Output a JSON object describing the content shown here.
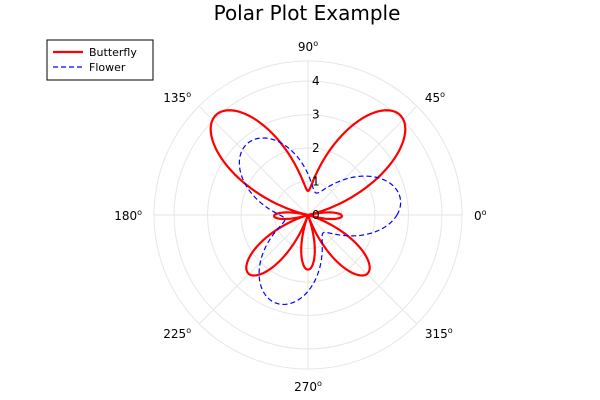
{
  "chart_data": {
    "type": "line",
    "projection": "polar",
    "title": "Polar Plot Example",
    "angle_unit_symbol": "o",
    "angular_ticks": [
      0,
      45,
      90,
      135,
      180,
      225,
      270,
      315
    ],
    "angular_tick_labels": [
      "0",
      "45",
      "90",
      "135",
      "180",
      "225",
      "270",
      "315"
    ],
    "radial_ticks": [
      0,
      1,
      2,
      3,
      4
    ],
    "radial_tick_labels": [
      "0",
      "1",
      "2",
      "3",
      "4"
    ],
    "rlim": [
      0,
      4.6
    ],
    "grid": true,
    "legend_position": "top-left",
    "series": [
      {
        "name": "Butterfly",
        "color": "#ff0000",
        "line_style": "solid",
        "function": "r = |exp(sin(θ)) − 2·cos(4θ)|, θ ∈ [0, 2π], radians",
        "theta_samples": 360
      },
      {
        "name": "Flower",
        "color": "#0000ff",
        "line_style": "dashed",
        "function": "r = 2 + 0.6·sin(3θ)·... (three-lobed closed curve, r ≈ 1.0–3.2)",
        "theta_samples": 360
      }
    ]
  }
}
